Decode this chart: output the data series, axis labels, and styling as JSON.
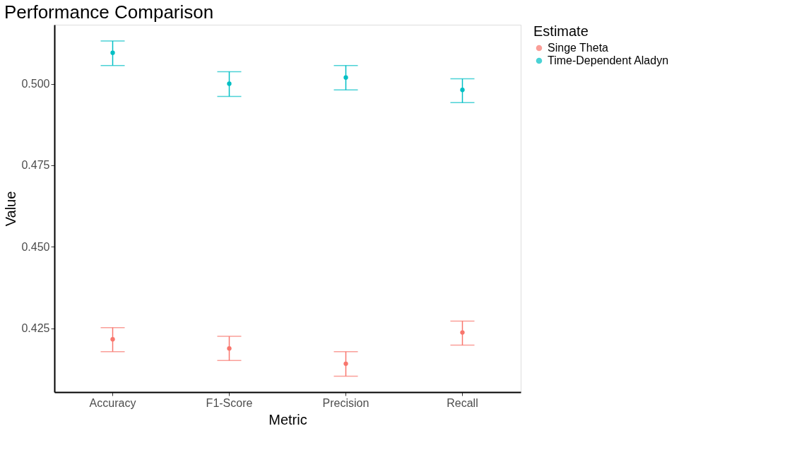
{
  "chart_data": {
    "type": "scatter",
    "title": "Performance Comparison",
    "xlabel": "Metric",
    "ylabel": "Value",
    "legend_title": "Estimate",
    "categories": [
      "Accuracy",
      "F1-Score",
      "Precision",
      "Recall"
    ],
    "series": [
      {
        "name": "Singe Theta",
        "color": "#f8766d",
        "values": [
          0.4216,
          0.4188,
          0.4141,
          0.4237
        ],
        "errors": [
          [
            0.4178,
            0.4252
          ],
          [
            0.4151,
            0.4225
          ],
          [
            0.4103,
            0.4178
          ],
          [
            0.4198,
            0.4272
          ]
        ]
      },
      {
        "name": "Time-Dependent Aladyn",
        "color": "#00bfc4",
        "values": [
          0.5095,
          0.5,
          0.5019,
          0.4981
        ],
        "errors": [
          [
            0.5056,
            0.5131
          ],
          [
            0.4961,
            0.5037
          ],
          [
            0.4981,
            0.5056
          ],
          [
            0.4942,
            0.5015
          ]
        ]
      }
    ],
    "ylim": [
      0.4054,
      0.5181
    ],
    "yticks": [
      0.425,
      {
        "value": 0.45,
        "label": "0.450"
      },
      0.475,
      {
        "value": 0.5,
        "label": "0.500"
      }
    ],
    "grid": false,
    "legend": "right",
    "marker": "circle"
  }
}
